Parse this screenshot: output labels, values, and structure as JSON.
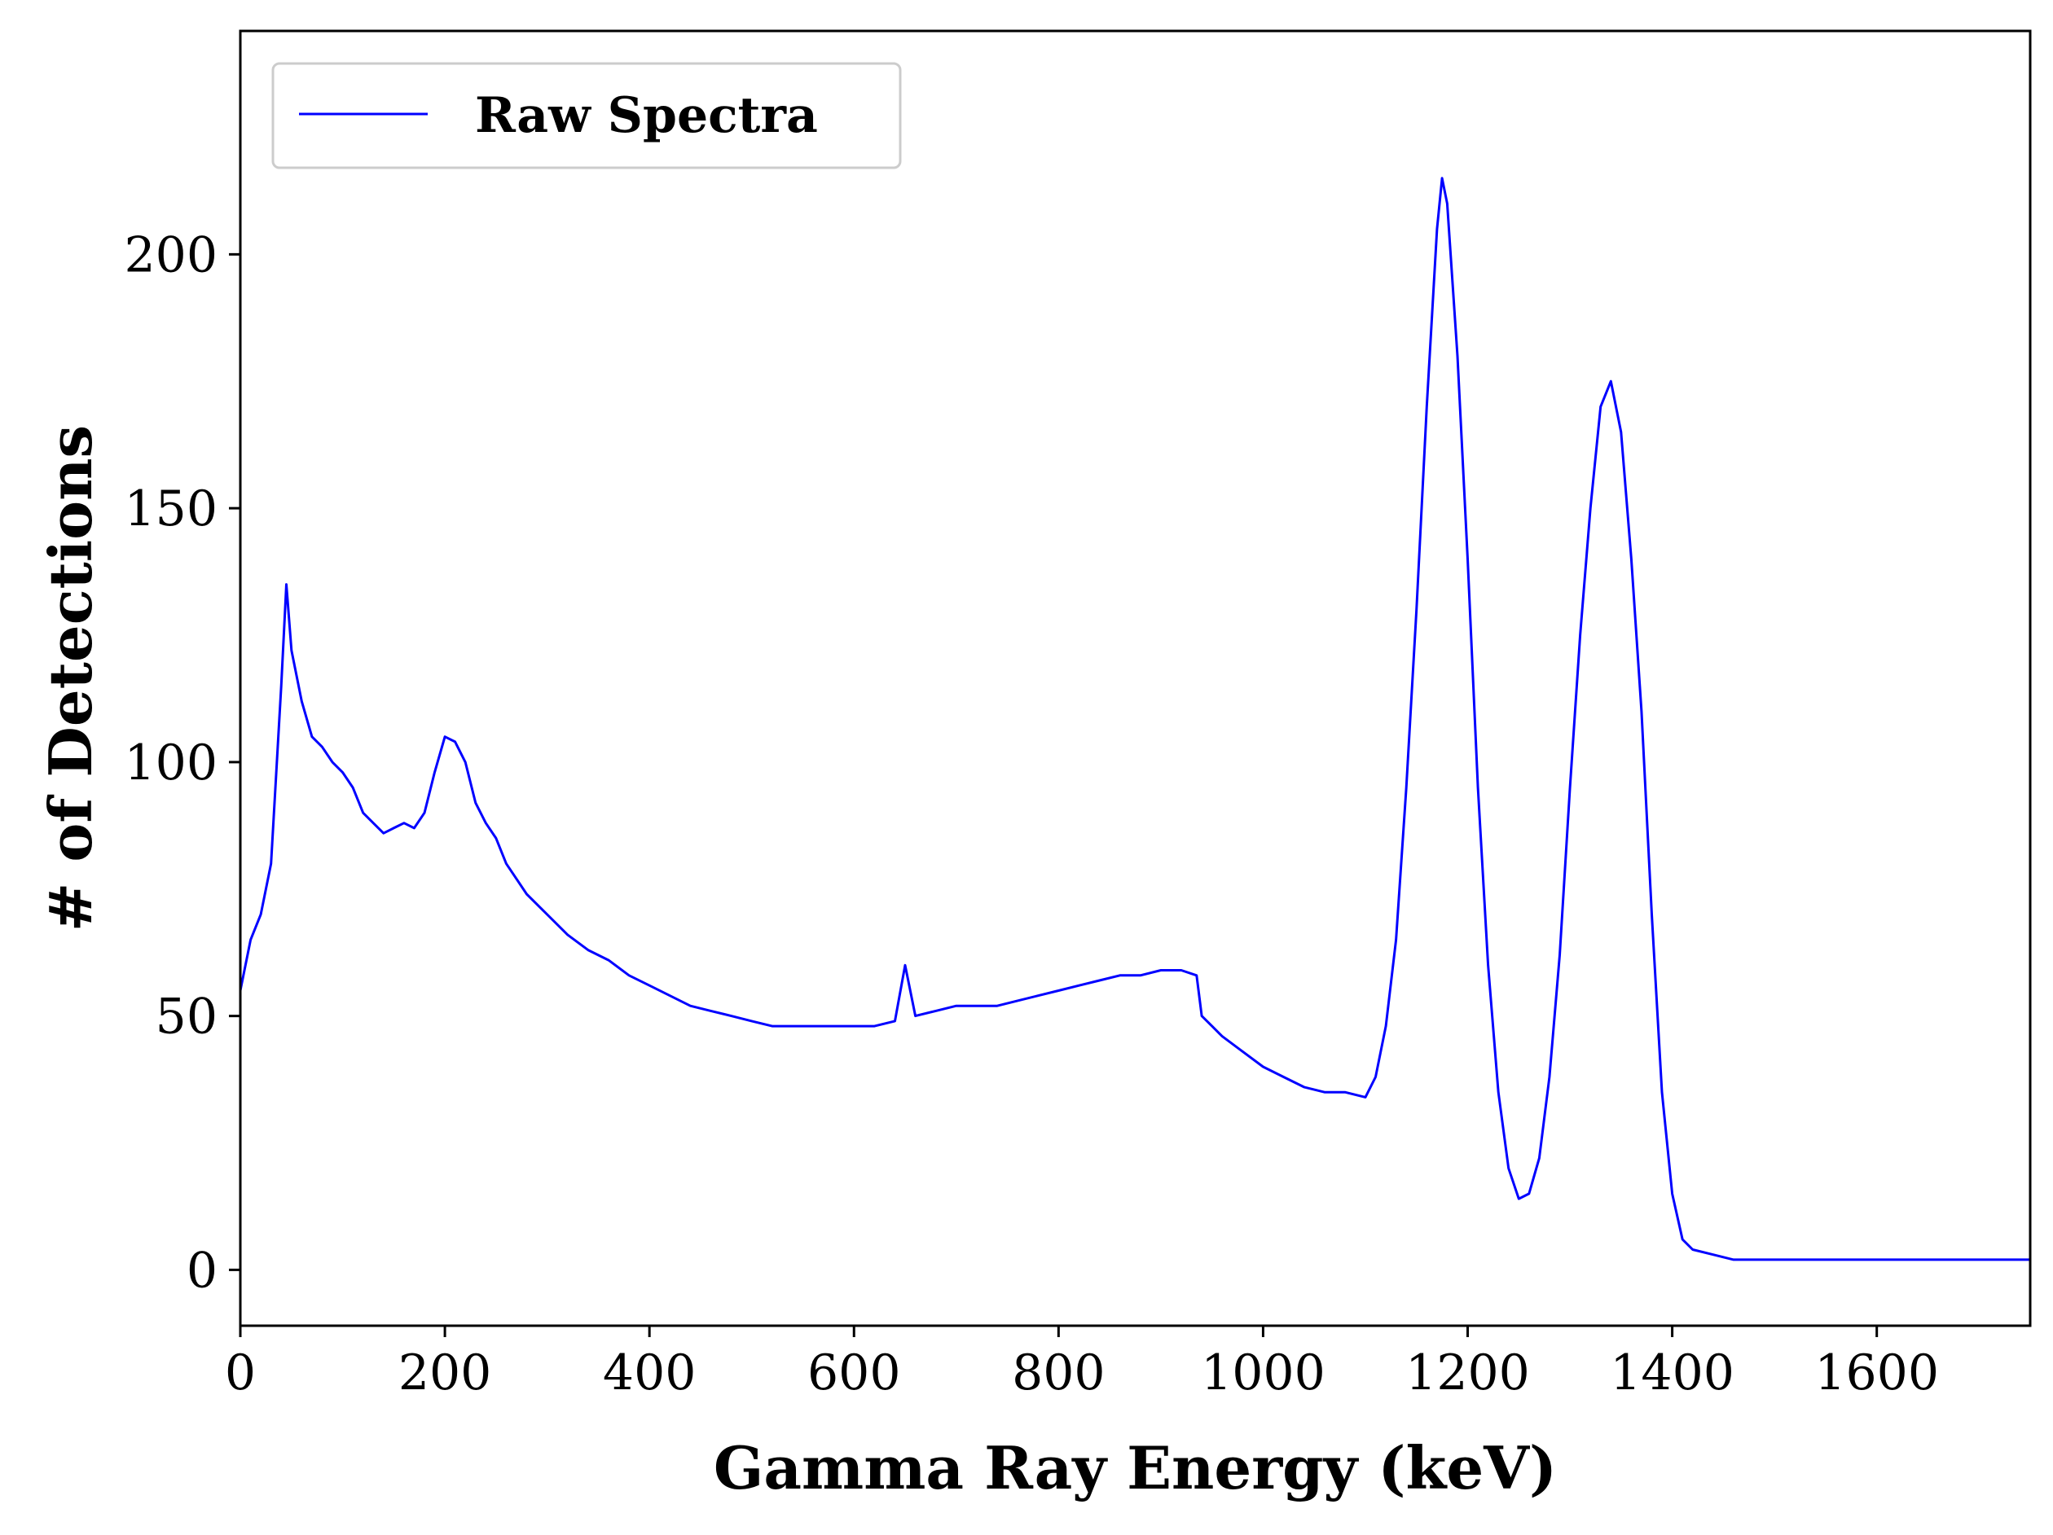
{
  "chart_data": {
    "type": "line",
    "title": "",
    "xlabel": "Gamma Ray Energy (keV)",
    "ylabel": "# of Detections",
    "xlim": [
      0,
      1750
    ],
    "ylim": [
      -11,
      244
    ],
    "xticks": [
      0,
      200,
      400,
      600,
      800,
      1000,
      1200,
      1400,
      1600
    ],
    "yticks": [
      0,
      50,
      100,
      150,
      200
    ],
    "grid": false,
    "legend_position": "top-left",
    "series": [
      {
        "name": "Raw Spectra",
        "color": "#0000ff",
        "x": [
          0,
          10,
          20,
          30,
          40,
          45,
          50,
          60,
          70,
          80,
          90,
          100,
          110,
          120,
          130,
          140,
          150,
          160,
          170,
          180,
          190,
          200,
          210,
          220,
          230,
          240,
          250,
          260,
          280,
          300,
          320,
          340,
          360,
          380,
          400,
          420,
          440,
          460,
          480,
          500,
          520,
          540,
          560,
          580,
          600,
          620,
          640,
          650,
          660,
          680,
          700,
          720,
          740,
          760,
          780,
          800,
          820,
          840,
          860,
          880,
          900,
          920,
          935,
          940,
          950,
          960,
          980,
          1000,
          1020,
          1040,
          1060,
          1080,
          1100,
          1110,
          1120,
          1130,
          1140,
          1150,
          1160,
          1170,
          1175,
          1180,
          1190,
          1200,
          1210,
          1220,
          1230,
          1240,
          1250,
          1260,
          1270,
          1280,
          1290,
          1300,
          1310,
          1320,
          1330,
          1340,
          1350,
          1360,
          1370,
          1380,
          1390,
          1400,
          1410,
          1420,
          1440,
          1460,
          1500,
          1550,
          1600,
          1650,
          1700,
          1750
        ],
        "y": [
          55,
          65,
          70,
          80,
          115,
          135,
          122,
          112,
          105,
          103,
          100,
          98,
          95,
          90,
          88,
          86,
          87,
          88,
          87,
          90,
          98,
          105,
          104,
          100,
          92,
          88,
          85,
          80,
          74,
          70,
          66,
          63,
          61,
          58,
          56,
          54,
          52,
          51,
          50,
          49,
          48,
          48,
          48,
          48,
          48,
          48,
          49,
          60,
          50,
          51,
          52,
          52,
          52,
          53,
          54,
          55,
          56,
          57,
          58,
          58,
          59,
          59,
          58,
          50,
          48,
          46,
          43,
          40,
          38,
          36,
          35,
          35,
          34,
          38,
          48,
          65,
          95,
          130,
          170,
          205,
          215,
          210,
          180,
          140,
          95,
          60,
          35,
          20,
          14,
          15,
          22,
          38,
          62,
          95,
          125,
          150,
          170,
          175,
          165,
          140,
          110,
          70,
          35,
          15,
          6,
          4,
          3,
          2,
          2,
          2,
          2,
          2,
          2,
          2
        ]
      }
    ]
  }
}
